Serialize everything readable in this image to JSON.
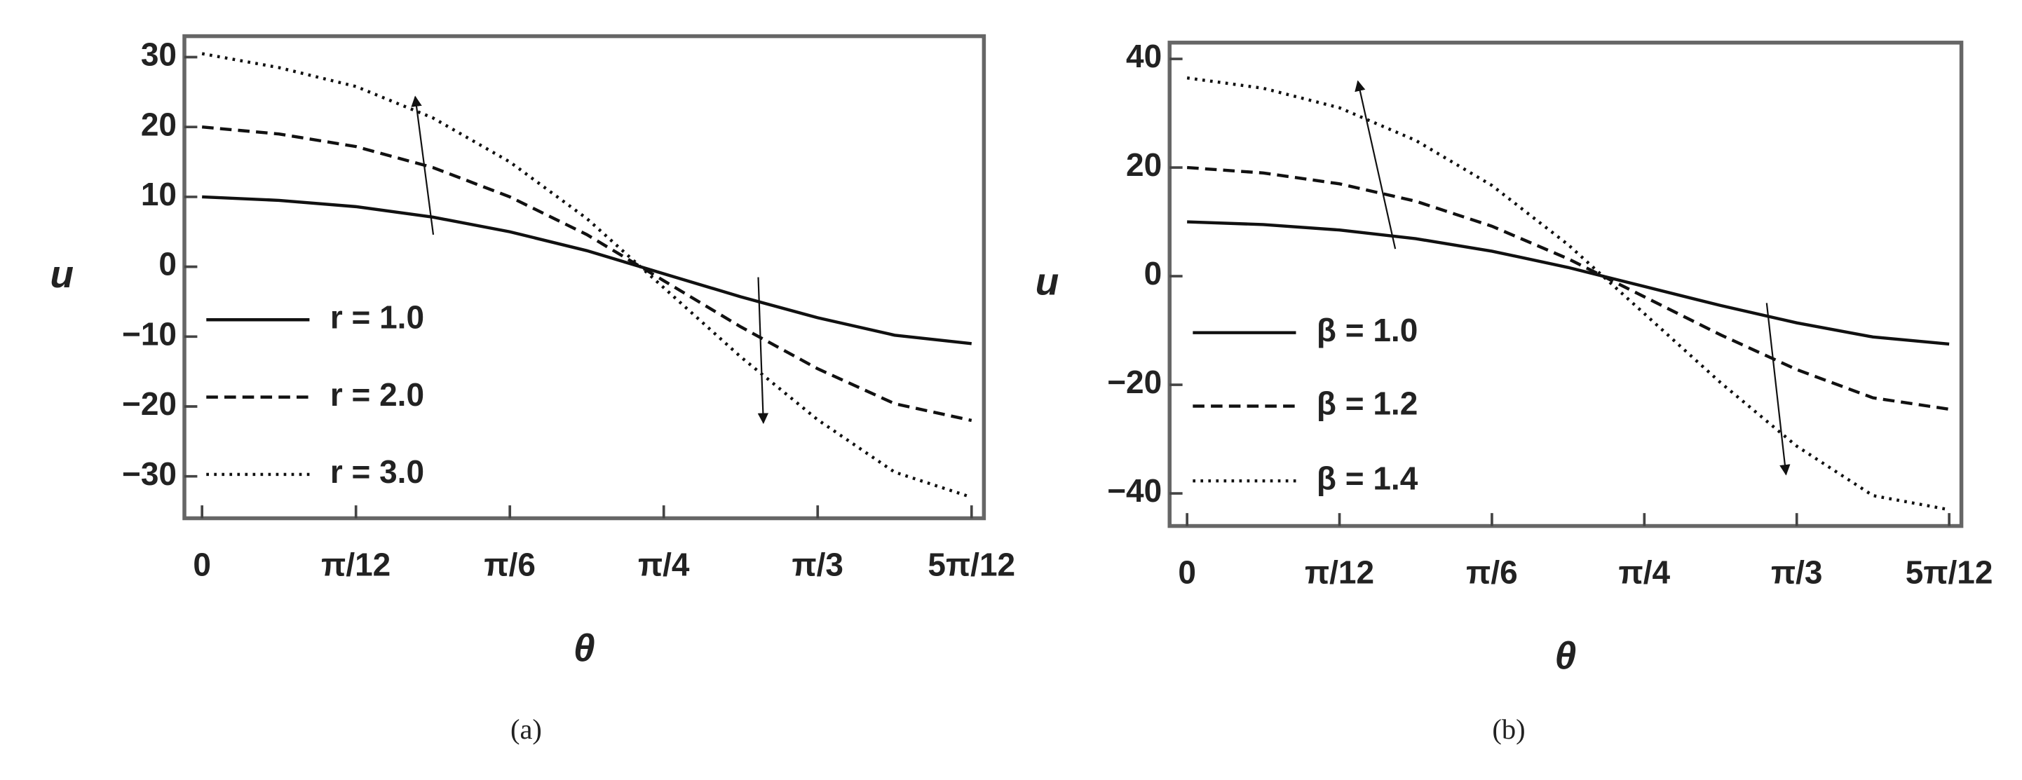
{
  "chart_data": [
    {
      "type": "line",
      "caption": "(a)",
      "xlabel": "θ",
      "ylabel": "u",
      "x": [
        0,
        0.1309,
        0.2618,
        0.3927,
        0.5236,
        0.6545,
        0.7854,
        0.9163,
        1.0472,
        1.1781,
        1.309
      ],
      "series": [
        {
          "name": "r = 1.0",
          "color": "#111111",
          "dash": "solid",
          "values": [
            10,
            9.5,
            8.6,
            7.1,
            5.0,
            2.3,
            -1.0,
            -4.3,
            -7.3,
            -9.8,
            -11.0
          ]
        },
        {
          "name": "r = 2.0",
          "color": "#111111",
          "dash": "dashed",
          "values": [
            20,
            19,
            17.2,
            14.2,
            10,
            4.6,
            -2,
            -8.6,
            -14.6,
            -19.6,
            -22.0
          ]
        },
        {
          "name": "r = 3.0",
          "color": "#111111",
          "dash": "dotted",
          "values": [
            30.5,
            28.5,
            25.8,
            21.3,
            15,
            6.9,
            -3,
            -12.9,
            -21.9,
            -29.4,
            -33.0
          ]
        }
      ],
      "xlim": [
        -0.03,
        1.33
      ],
      "ylim": [
        -36,
        33
      ],
      "xticks": [
        0,
        {
          "value": 0.2618,
          "label": "π/12"
        },
        {
          "value": 0.5236,
          "label": "π/6"
        },
        {
          "value": 0.7854,
          "label": "π/4"
        },
        {
          "value": 1.0472,
          "label": "π/3"
        },
        {
          "value": 1.309,
          "label": "5π/12"
        }
      ],
      "yticks": [
        30,
        20,
        10,
        0,
        {
          "value": -10,
          "label": "−10"
        },
        {
          "value": -20,
          "label": "−20"
        },
        {
          "value": -30,
          "label": "−30"
        }
      ]
    },
    {
      "type": "line",
      "caption": "(b)",
      "xlabel": "θ",
      "ylabel": "u",
      "x": [
        0,
        0.1309,
        0.2618,
        0.3927,
        0.5236,
        0.6545,
        0.7854,
        0.9163,
        1.0472,
        1.1781,
        1.309
      ],
      "series": [
        {
          "name": "β = 1.0",
          "color": "#111111",
          "dash": "solid",
          "values": [
            10,
            9.5,
            8.5,
            6.9,
            4.6,
            1.6,
            -1.9,
            -5.4,
            -8.6,
            -11.2,
            -12.5
          ]
        },
        {
          "name": "β = 1.2",
          "color": "#111111",
          "dash": "dashed",
          "values": [
            20,
            19,
            17,
            13.8,
            9.2,
            3.2,
            -3.8,
            -10.8,
            -17.2,
            -22.4,
            -24.5
          ]
        },
        {
          "name": "β = 1.4",
          "color": "#111111",
          "dash": "dotted",
          "values": [
            36.5,
            34.6,
            31,
            25,
            16.7,
            5.8,
            -6.9,
            -19.6,
            -31.3,
            -40.4,
            -43
          ]
        }
      ],
      "xlim": [
        -0.03,
        1.33
      ],
      "ylim": [
        -46,
        43
      ],
      "xticks": [
        0,
        {
          "value": 0.2618,
          "label": "π/12"
        },
        {
          "value": 0.5236,
          "label": "π/6"
        },
        {
          "value": 0.7854,
          "label": "π/4"
        },
        {
          "value": 1.0472,
          "label": "π/3"
        },
        {
          "value": 1.309,
          "label": "5π/12"
        }
      ],
      "yticks": [
        40,
        20,
        0,
        {
          "value": -20,
          "label": "−20"
        },
        {
          "value": -40,
          "label": "−40"
        }
      ]
    }
  ]
}
